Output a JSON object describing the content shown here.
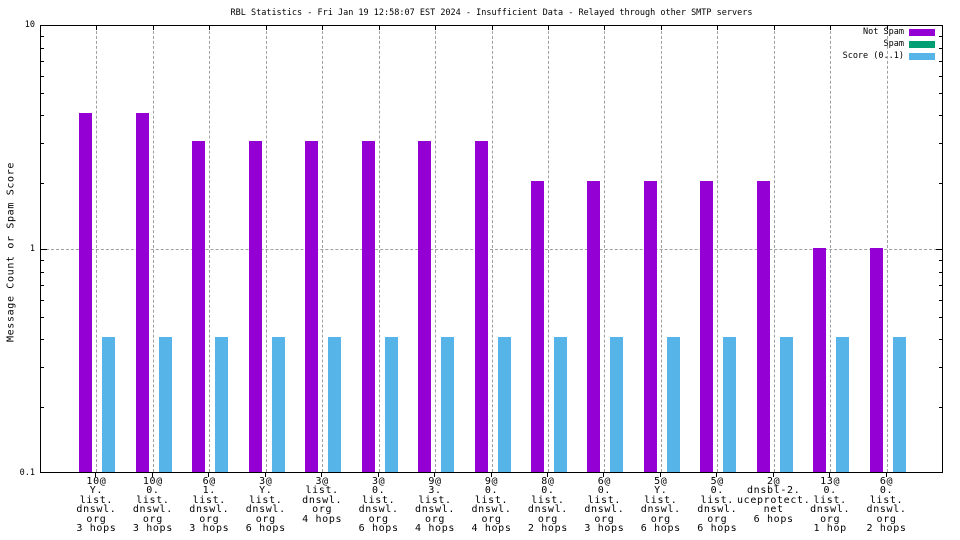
{
  "title": "RBL Statistics - Fri Jan 19 12:58:07 EST 2024 - Insufficient Data - Relayed through other SMTP servers",
  "y_axis": {
    "label": "Message Count or Spam Score",
    "tick_labels": [
      "10",
      "1",
      "0.1"
    ]
  },
  "chart_data": {
    "type": "bar",
    "title": "RBL Statistics - Fri Jan 19 12:58:07 EST 2024 - Insufficient Data - Relayed through other SMTP servers",
    "xlabel": "",
    "ylabel": "Message Count or Spam Score",
    "yscale": "log",
    "ylim": [
      0.1,
      10
    ],
    "ytick_labels": [
      "10",
      "1",
      "0.1"
    ],
    "grid": {
      "vertical_dashed_at_each_category": true,
      "horizontal_dashed_at": [
        1
      ]
    },
    "legend_position": "top-right-inside",
    "categories": [
      [
        "10@",
        "Y.",
        "list.",
        "dnswl.",
        "org",
        "3 hops"
      ],
      [
        "10@",
        "0.",
        "list.",
        "dnswl.",
        "org",
        "3 hops"
      ],
      [
        "6@",
        "1.",
        "list.",
        "dnswl.",
        "org",
        "3 hops"
      ],
      [
        "3@",
        "Y.",
        "list.",
        "dnswl.",
        "org",
        "6 hops"
      ],
      [
        "3@",
        "list.",
        "dnswl.",
        "org",
        "4 hops"
      ],
      [
        "3@",
        "0.",
        "list.",
        "dnswl.",
        "org",
        "6 hops"
      ],
      [
        "9@",
        "3.",
        "list.",
        "dnswl.",
        "org",
        "4 hops"
      ],
      [
        "9@",
        "0.",
        "list.",
        "dnswl.",
        "org",
        "4 hops"
      ],
      [
        "8@",
        "0.",
        "list.",
        "dnswl.",
        "org",
        "2 hops"
      ],
      [
        "6@",
        "0.",
        "list.",
        "dnswl.",
        "org",
        "3 hops"
      ],
      [
        "5@",
        "Y.",
        "list.",
        "dnswl.",
        "org",
        "6 hops"
      ],
      [
        "5@",
        "0.",
        "list.",
        "dnswl.",
        "org",
        "6 hops"
      ],
      [
        "2@",
        "dnsbl-2.",
        "uceprotect.",
        "net",
        "6 hops"
      ],
      [
        "13@",
        "0.",
        "list.",
        "dnswl.",
        "org",
        "1 hop"
      ],
      [
        "6@",
        "0.",
        "list.",
        "dnswl.",
        "org",
        "2 hops"
      ]
    ],
    "series": [
      {
        "name": "Not Spam",
        "color": "#9400d3",
        "values": [
          4,
          4,
          3,
          3,
          3,
          3,
          3,
          3,
          2,
          2,
          2,
          2,
          2,
          1,
          1
        ]
      },
      {
        "name": "Spam",
        "color": "#009e73",
        "values": [
          0,
          0,
          0,
          0,
          0,
          0,
          0,
          0,
          0,
          0,
          0,
          0,
          0,
          0,
          0
        ]
      },
      {
        "name": "Score (0..1)",
        "color": "#56b4e9",
        "values": [
          0.4,
          0.4,
          0.4,
          0.4,
          0.4,
          0.4,
          0.4,
          0.4,
          0.4,
          0.4,
          0.4,
          0.4,
          0.4,
          0.4,
          0.4
        ]
      }
    ]
  }
}
